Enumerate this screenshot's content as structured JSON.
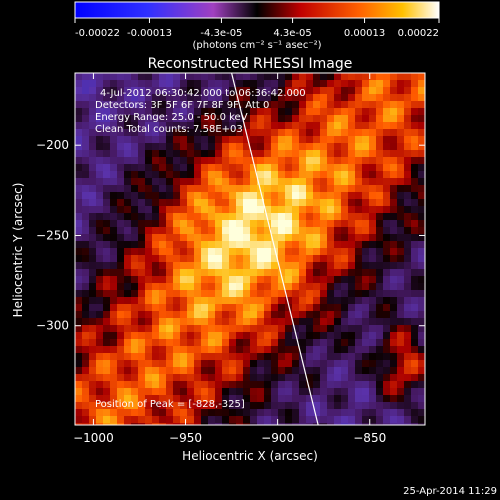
{
  "colorbar": {
    "tick_labels": [
      "-0.00022",
      "-0.00013",
      "-4.3e-05",
      "4.3e-05",
      "0.00013",
      "0.00022"
    ],
    "tick_values": [
      -0.00022,
      -0.00013,
      -4.3e-05,
      4.3e-05,
      0.00013,
      0.00022
    ],
    "range": [
      -0.00022,
      0.00022
    ],
    "unit_label": "(photons cm⁻² s⁻¹ asec⁻²)"
  },
  "chart_data": {
    "type": "heatmap",
    "title": "Reconstructed RHESSI Image",
    "xlabel": "Heliocentric X (arcsec)",
    "ylabel": "Heliocentric Y (arcsec)",
    "xlim": [
      -1010,
      -820
    ],
    "ylim": [
      -355,
      -160
    ],
    "x_ticks": [
      -1000,
      -950,
      -900,
      -850
    ],
    "y_ticks": [
      -200,
      -250,
      -300
    ],
    "x_tick_labels": [
      "−1000",
      "−950",
      "−900",
      "−850"
    ],
    "y_tick_labels": [
      "−200",
      "−250",
      "−300"
    ],
    "limb_line": {
      "x": [
        -925,
        -878
      ],
      "y": [
        -160,
        -355
      ]
    },
    "annotations": [
      "4-Jul-2012 06:30:42.000 to 06:36:42.000",
      "Detectors: 3F 5F 6F 7F 8F 9F, Att 0",
      "Energy Range: 25.0 - 50.0 keV",
      "Clean     Total counts: 7.58E+03"
    ],
    "peak_label": "Position of Peak = [-828,-325]",
    "peak": {
      "x": -828,
      "y": -325
    }
  },
  "footer": {
    "timestamp": "25-Apr-2014 11:29"
  },
  "colors": {
    "background": "#000000",
    "limb": "#ffffff"
  }
}
